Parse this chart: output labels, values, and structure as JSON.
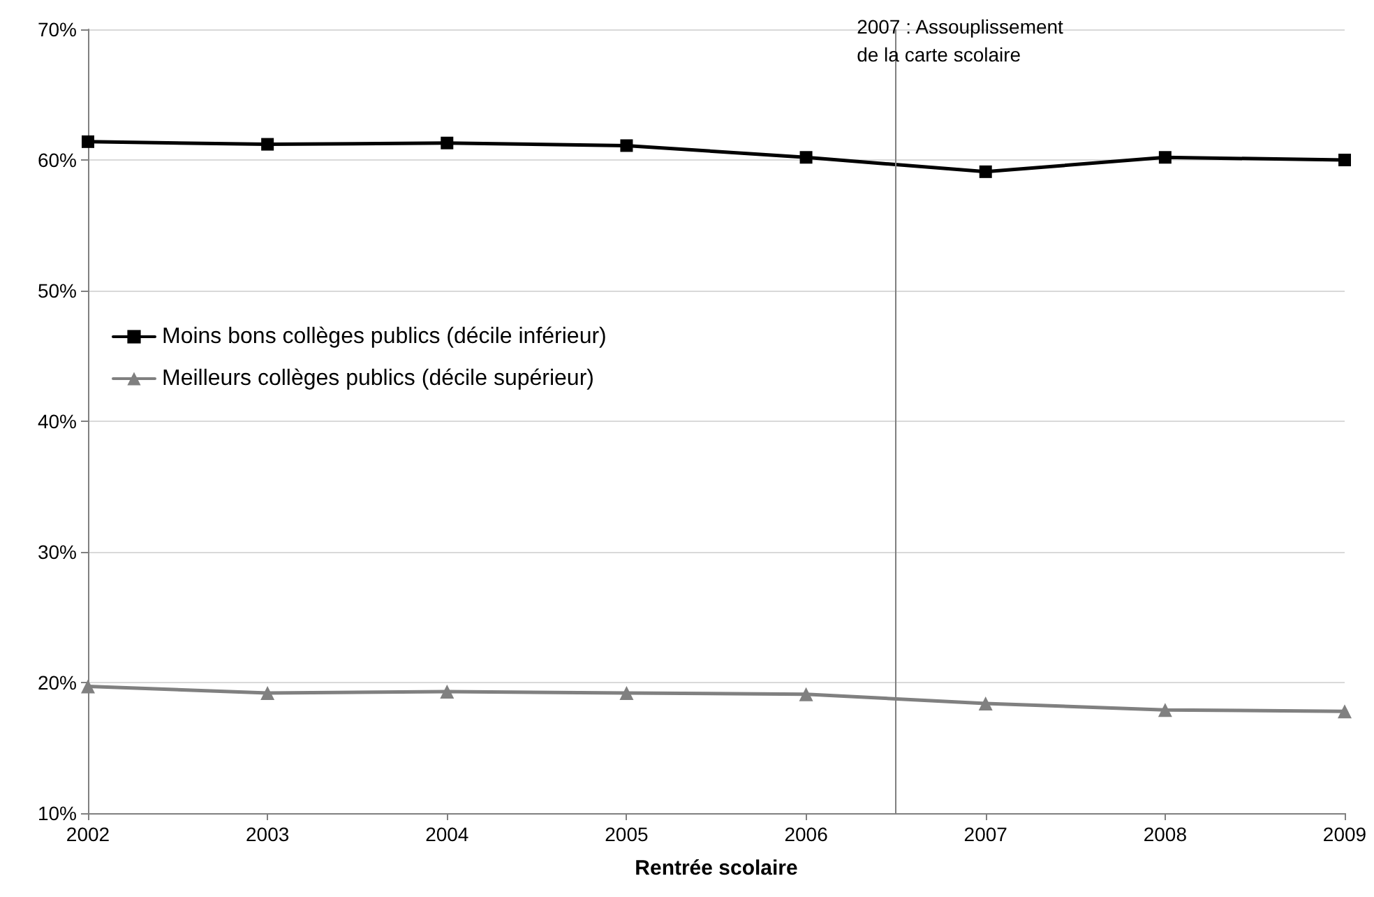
{
  "chart_data": {
    "type": "line",
    "xlabel": "Rentrée scolaire",
    "x": [
      2002,
      2003,
      2004,
      2005,
      2006,
      2007,
      2008,
      2009
    ],
    "series": [
      {
        "name": "Moins bons collèges publics (décile inférieur)",
        "color": "#000000",
        "marker": "square",
        "values": [
          61.4,
          61.2,
          61.3,
          61.1,
          60.2,
          59.1,
          60.2,
          60.0
        ]
      },
      {
        "name": "Meilleurs collèges publics (décile supérieur)",
        "color": "#808080",
        "marker": "triangle",
        "values": [
          19.7,
          19.2,
          19.3,
          19.2,
          19.1,
          18.4,
          17.9,
          17.8
        ]
      }
    ],
    "xlim": [
      2002,
      2009
    ],
    "xticks": [
      2002,
      2003,
      2004,
      2005,
      2006,
      2007,
      2008,
      2009
    ],
    "ylim": [
      10,
      70
    ],
    "yticks": [
      {
        "value": 10,
        "label": "10%"
      },
      {
        "value": 20,
        "label": "20%"
      },
      {
        "value": 30,
        "label": "30%"
      },
      {
        "value": 40,
        "label": "40%"
      },
      {
        "value": 50,
        "label": "50%"
      },
      {
        "value": 60,
        "label": "60%"
      },
      {
        "value": 70,
        "label": "70%"
      }
    ],
    "ref_lines": [
      {
        "axis": "x",
        "value": 2006.5,
        "label": "2007 : Assouplissement\nde la carte scolaire",
        "color": "#808080"
      }
    ],
    "grid": "y",
    "legend": "left",
    "line_style": "solid"
  }
}
